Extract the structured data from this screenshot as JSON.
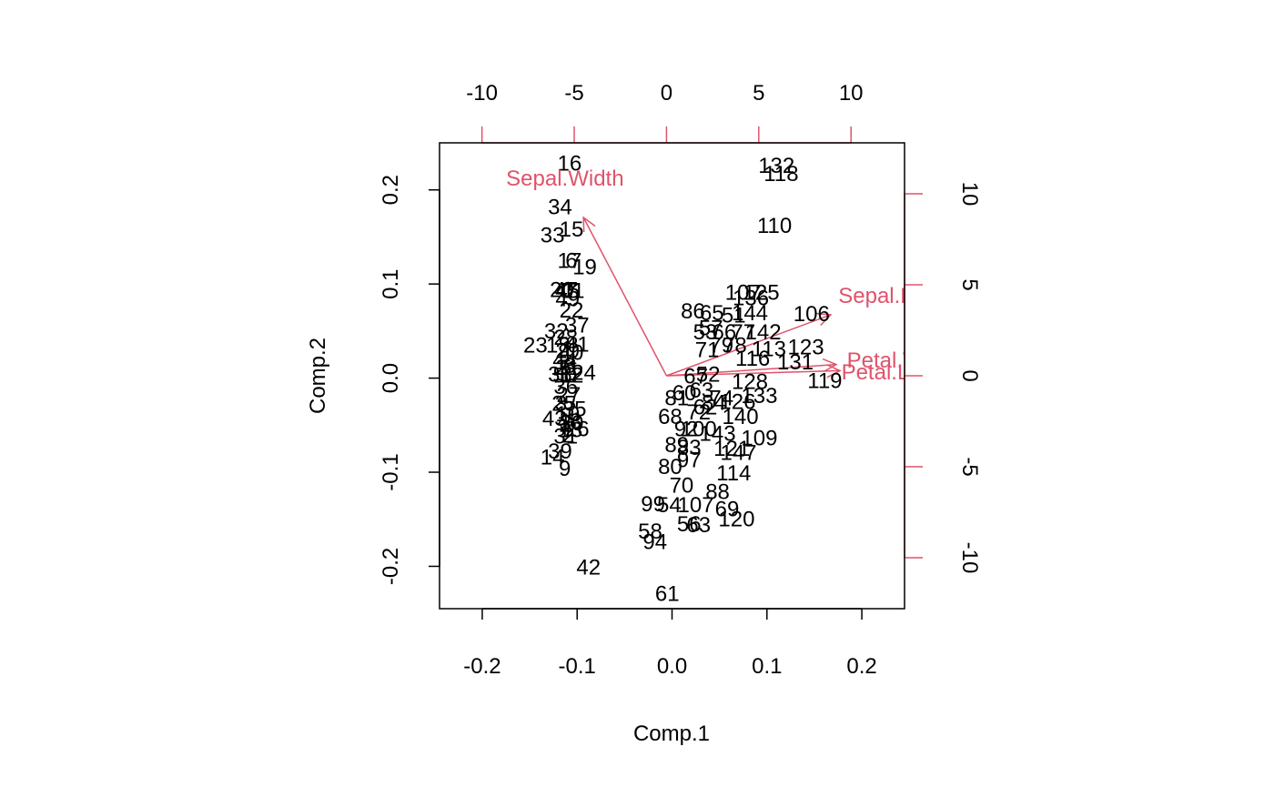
{
  "chart_data": {
    "type": "scatter",
    "subtype": "biplot",
    "title": "",
    "xlabel": "Comp.1",
    "ylabel": "Comp.2",
    "xlim": [
      -0.245,
      0.245
    ],
    "ylim": [
      -0.245,
      0.25
    ],
    "x_ticks": [
      -0.2,
      -0.1,
      0.0,
      0.1,
      0.2
    ],
    "x_tick_labels": [
      "-0.2",
      "-0.1",
      "0.0",
      "0.1",
      "0.2"
    ],
    "y_ticks": [
      -0.2,
      -0.1,
      0.0,
      0.1,
      0.2
    ],
    "y_tick_labels": [
      "-0.2",
      "-0.1",
      "0.0",
      "0.1",
      "0.2"
    ],
    "loading_xlim": [
      -12.3,
      12.9
    ],
    "loading_ylim": [
      -12.8,
      12.8
    ],
    "top_ticks": [
      -10,
      -5,
      0,
      5,
      10
    ],
    "top_tick_labels": [
      "-10",
      "-5",
      "0",
      "5",
      "10"
    ],
    "right_ticks": [
      -10,
      -5,
      0,
      5,
      10
    ],
    "right_tick_labels": [
      "-10",
      "-5",
      "0",
      "5",
      "10"
    ],
    "grid": false,
    "legend": "none",
    "colors": {
      "points": "#000000",
      "loadings": "#DF536B",
      "frame": "#000000"
    },
    "observations": [
      {
        "label": "16",
        "x": -0.108,
        "y": 0.229
      },
      {
        "label": "34",
        "x": -0.118,
        "y": 0.183
      },
      {
        "label": "33",
        "x": -0.126,
        "y": 0.153
      },
      {
        "label": "15",
        "x": -0.106,
        "y": 0.159
      },
      {
        "label": "17",
        "x": -0.108,
        "y": 0.126
      },
      {
        "label": "6",
        "x": -0.106,
        "y": 0.126
      },
      {
        "label": "19",
        "x": -0.092,
        "y": 0.119
      },
      {
        "label": "20",
        "x": -0.116,
        "y": 0.095
      },
      {
        "label": "47",
        "x": -0.112,
        "y": 0.095
      },
      {
        "label": "11",
        "x": -0.104,
        "y": 0.094
      },
      {
        "label": "45",
        "x": -0.11,
        "y": 0.094
      },
      {
        "label": "49",
        "x": -0.11,
        "y": 0.085
      },
      {
        "label": "22",
        "x": -0.106,
        "y": 0.073
      },
      {
        "label": "37",
        "x": -0.1,
        "y": 0.057
      },
      {
        "label": "32",
        "x": -0.122,
        "y": 0.051
      },
      {
        "label": "28",
        "x": -0.112,
        "y": 0.044
      },
      {
        "label": "23",
        "x": -0.144,
        "y": 0.036
      },
      {
        "label": "18",
        "x": -0.12,
        "y": 0.036
      },
      {
        "label": "41",
        "x": -0.1,
        "y": 0.037
      },
      {
        "label": "1",
        "x": -0.111,
        "y": 0.032
      },
      {
        "label": "29",
        "x": -0.11,
        "y": 0.03
      },
      {
        "label": "40",
        "x": -0.106,
        "y": 0.028
      },
      {
        "label": "44",
        "x": -0.113,
        "y": 0.02
      },
      {
        "label": "5",
        "x": -0.112,
        "y": 0.012
      },
      {
        "label": "21",
        "x": -0.11,
        "y": 0.012
      },
      {
        "label": "8",
        "x": -0.108,
        "y": 0.014
      },
      {
        "label": "38",
        "x": -0.118,
        "y": 0.005
      },
      {
        "label": "50",
        "x": -0.113,
        "y": 0.004
      },
      {
        "label": "12",
        "x": -0.106,
        "y": 0.004
      },
      {
        "label": "24",
        "x": -0.093,
        "y": 0.007
      },
      {
        "label": "36",
        "x": -0.112,
        "y": -0.008
      },
      {
        "label": "27",
        "x": -0.109,
        "y": -0.017
      },
      {
        "label": "3",
        "x": -0.117,
        "y": -0.026
      },
      {
        "label": "25",
        "x": -0.114,
        "y": -0.026
      },
      {
        "label": "35",
        "x": -0.103,
        "y": -0.032
      },
      {
        "label": "43",
        "x": -0.124,
        "y": -0.042
      },
      {
        "label": "10",
        "x": -0.11,
        "y": -0.037
      },
      {
        "label": "30",
        "x": -0.106,
        "y": -0.047
      },
      {
        "label": "13",
        "x": -0.107,
        "y": -0.054
      },
      {
        "label": "26",
        "x": -0.1,
        "y": -0.053
      },
      {
        "label": "2",
        "x": -0.109,
        "y": -0.06
      },
      {
        "label": "4",
        "x": -0.112,
        "y": -0.052
      },
      {
        "label": "48",
        "x": -0.108,
        "y": -0.045
      },
      {
        "label": "31",
        "x": -0.112,
        "y": -0.061
      },
      {
        "label": "39",
        "x": -0.118,
        "y": -0.077
      },
      {
        "label": "14",
        "x": -0.126,
        "y": -0.083
      },
      {
        "label": "9",
        "x": -0.113,
        "y": -0.095
      },
      {
        "label": "42",
        "x": -0.088,
        "y": -0.2
      },
      {
        "label": "132",
        "x": 0.11,
        "y": 0.227
      },
      {
        "label": "118",
        "x": 0.115,
        "y": 0.218
      },
      {
        "label": "110",
        "x": 0.108,
        "y": 0.163
      },
      {
        "label": "107",
        "x": 0.075,
        "y": 0.092
      },
      {
        "label": "125",
        "x": 0.094,
        "y": 0.092
      },
      {
        "label": "136",
        "x": 0.083,
        "y": 0.086
      },
      {
        "label": "106",
        "x": 0.147,
        "y": 0.069
      },
      {
        "label": "86",
        "x": 0.022,
        "y": 0.072
      },
      {
        "label": "65",
        "x": 0.042,
        "y": 0.07
      },
      {
        "label": "51",
        "x": 0.065,
        "y": 0.068
      },
      {
        "label": "144",
        "x": 0.082,
        "y": 0.07
      },
      {
        "label": "57",
        "x": 0.041,
        "y": 0.054
      },
      {
        "label": "53",
        "x": 0.035,
        "y": 0.05
      },
      {
        "label": "66",
        "x": 0.055,
        "y": 0.05
      },
      {
        "label": "77",
        "x": 0.075,
        "y": 0.05
      },
      {
        "label": "142",
        "x": 0.096,
        "y": 0.05
      },
      {
        "label": "71",
        "x": 0.037,
        "y": 0.031
      },
      {
        "label": "79",
        "x": 0.052,
        "y": 0.036
      },
      {
        "label": "78",
        "x": 0.066,
        "y": 0.036
      },
      {
        "label": "123",
        "x": 0.141,
        "y": 0.034
      },
      {
        "label": "113",
        "x": 0.102,
        "y": 0.032
      },
      {
        "label": "131",
        "x": 0.13,
        "y": 0.018
      },
      {
        "label": "116",
        "x": 0.085,
        "y": 0.022
      },
      {
        "label": "119",
        "x": 0.161,
        "y": -0.002
      },
      {
        "label": "52",
        "x": 0.038,
        "y": 0.005
      },
      {
        "label": "67",
        "x": 0.025,
        "y": 0.003
      },
      {
        "label": "128",
        "x": 0.082,
        "y": -0.003
      },
      {
        "label": "60",
        "x": 0.013,
        "y": -0.015
      },
      {
        "label": "63",
        "x": 0.031,
        "y": -0.012
      },
      {
        "label": "81",
        "x": 0.005,
        "y": -0.02
      },
      {
        "label": "133",
        "x": 0.092,
        "y": -0.018
      },
      {
        "label": "74",
        "x": 0.052,
        "y": -0.02
      },
      {
        "label": "84",
        "x": 0.044,
        "y": -0.025
      },
      {
        "label": "126",
        "x": 0.069,
        "y": -0.024
      },
      {
        "label": "62",
        "x": 0.035,
        "y": -0.03
      },
      {
        "label": "68",
        "x": -0.002,
        "y": -0.04
      },
      {
        "label": "72",
        "x": 0.028,
        "y": -0.035
      },
      {
        "label": "140",
        "x": 0.072,
        "y": -0.04
      },
      {
        "label": "92",
        "x": 0.015,
        "y": -0.053
      },
      {
        "label": "100",
        "x": 0.028,
        "y": -0.053
      },
      {
        "label": "143",
        "x": 0.048,
        "y": -0.058
      },
      {
        "label": "109",
        "x": 0.092,
        "y": -0.063
      },
      {
        "label": "89",
        "x": 0.005,
        "y": -0.07
      },
      {
        "label": "83",
        "x": 0.018,
        "y": -0.073
      },
      {
        "label": "147",
        "x": 0.07,
        "y": -0.078
      },
      {
        "label": "121",
        "x": 0.063,
        "y": -0.074
      },
      {
        "label": "80",
        "x": -0.002,
        "y": -0.093
      },
      {
        "label": "97",
        "x": 0.018,
        "y": -0.086
      },
      {
        "label": "114",
        "x": 0.065,
        "y": -0.1
      },
      {
        "label": "70",
        "x": 0.01,
        "y": -0.113
      },
      {
        "label": "88",
        "x": 0.048,
        "y": -0.12
      },
      {
        "label": "99",
        "x": -0.02,
        "y": -0.133
      },
      {
        "label": "54",
        "x": -0.003,
        "y": -0.134
      },
      {
        "label": "107b",
        "x": 0.025,
        "y": -0.134
      },
      {
        "label": "69",
        "x": 0.058,
        "y": -0.138
      },
      {
        "label": "120",
        "x": 0.068,
        "y": -0.149
      },
      {
        "label": "56",
        "x": 0.018,
        "y": -0.154
      },
      {
        "label": "63b",
        "x": 0.028,
        "y": -0.155
      },
      {
        "label": "58",
        "x": -0.023,
        "y": -0.162
      },
      {
        "label": "94",
        "x": -0.018,
        "y": -0.173
      },
      {
        "label": "61",
        "x": -0.005,
        "y": -0.228
      }
    ],
    "loadings": [
      {
        "label": "Sepal.Length",
        "x": 8.9,
        "y": 3.35,
        "label_x": 12.8,
        "label_y": 4.45
      },
      {
        "label": "Sepal.Width",
        "x": -4.5,
        "y": 8.7,
        "label_x": -5.5,
        "label_y": 10.9
      },
      {
        "label": "Petal.Length",
        "x": 9.4,
        "y": 0.28,
        "label_x": 12.8,
        "label_y": 0.25
      },
      {
        "label": "Petal.Width",
        "x": 9.2,
        "y": 0.62,
        "label_x": 12.8,
        "label_y": 0.9
      }
    ]
  }
}
